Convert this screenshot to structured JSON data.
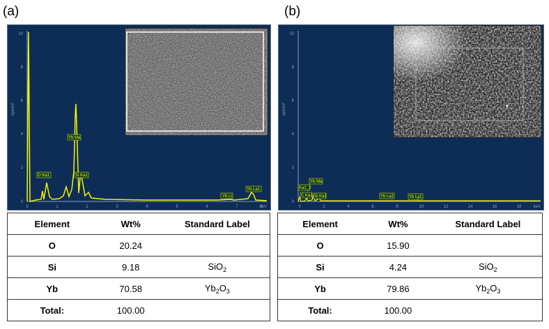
{
  "panels": [
    {
      "label": "(a)",
      "spectrum": {
        "y_axis_label": "cps/eV",
        "x_axis_unit": "keV",
        "y_ticks": [
          "0",
          "2",
          "4",
          "6",
          "8",
          "10"
        ],
        "x_ticks": [
          "0",
          "1",
          "2",
          "3",
          "4",
          "5",
          "6",
          "7",
          "8"
        ],
        "peak_labels": [
          "O Ka1",
          "Yb Ma",
          "Si Ka1",
          "Yb Ll",
          "Yb La1"
        ]
      },
      "table": {
        "headers": [
          "Element",
          "Wt%",
          "Standard Label"
        ],
        "rows": [
          {
            "element": "O",
            "wt": "20.24",
            "std_base": "",
            "std_sub": "",
            "std_tail": ""
          },
          {
            "element": "Si",
            "wt": "9.18",
            "std_base": "SiO",
            "std_sub": "2",
            "std_tail": ""
          },
          {
            "element": "Yb",
            "wt": "70.58",
            "std_base": "Yb",
            "std_sub": "2",
            "std_tail": "O",
            "std_sub2": "3"
          },
          {
            "element": "Total:",
            "wt": "100.00",
            "std_base": "",
            "std_sub": "",
            "std_tail": ""
          }
        ]
      }
    },
    {
      "label": "(b)",
      "spectrum": {
        "y_axis_label": "cps/eV",
        "x_axis_unit": "keV",
        "y_ticks": [
          "0",
          "2",
          "4",
          "6",
          "8",
          "10"
        ],
        "x_ticks": [
          "0",
          "2",
          "4",
          "6",
          "8",
          "10",
          "12",
          "14",
          "16",
          "18"
        ],
        "peak_labels": [
          "Ka1_2",
          "C Ka1",
          "Yb Ma",
          "Si Ka1",
          "Yb La1",
          "Yb Ly1"
        ]
      },
      "table": {
        "headers": [
          "Element",
          "Wt%",
          "Standard Label"
        ],
        "rows": [
          {
            "element": "O",
            "wt": "15.90",
            "std_base": "",
            "std_sub": "",
            "std_tail": ""
          },
          {
            "element": "Si",
            "wt": "4.24",
            "std_base": "SiO",
            "std_sub": "2",
            "std_tail": ""
          },
          {
            "element": "Yb",
            "wt": "79.86",
            "std_base": "Yb",
            "std_sub": "2",
            "std_tail": "O",
            "std_sub2": "3"
          },
          {
            "element": "Total:",
            "wt": "100.00",
            "std_base": "",
            "std_sub": "",
            "std_tail": ""
          }
        ]
      }
    }
  ],
  "colors": {
    "spectrum_bg": "#0e2d56",
    "trace": "#f3f300",
    "axis": "#8aa0b8",
    "label_fill": "#0c3b2a"
  }
}
